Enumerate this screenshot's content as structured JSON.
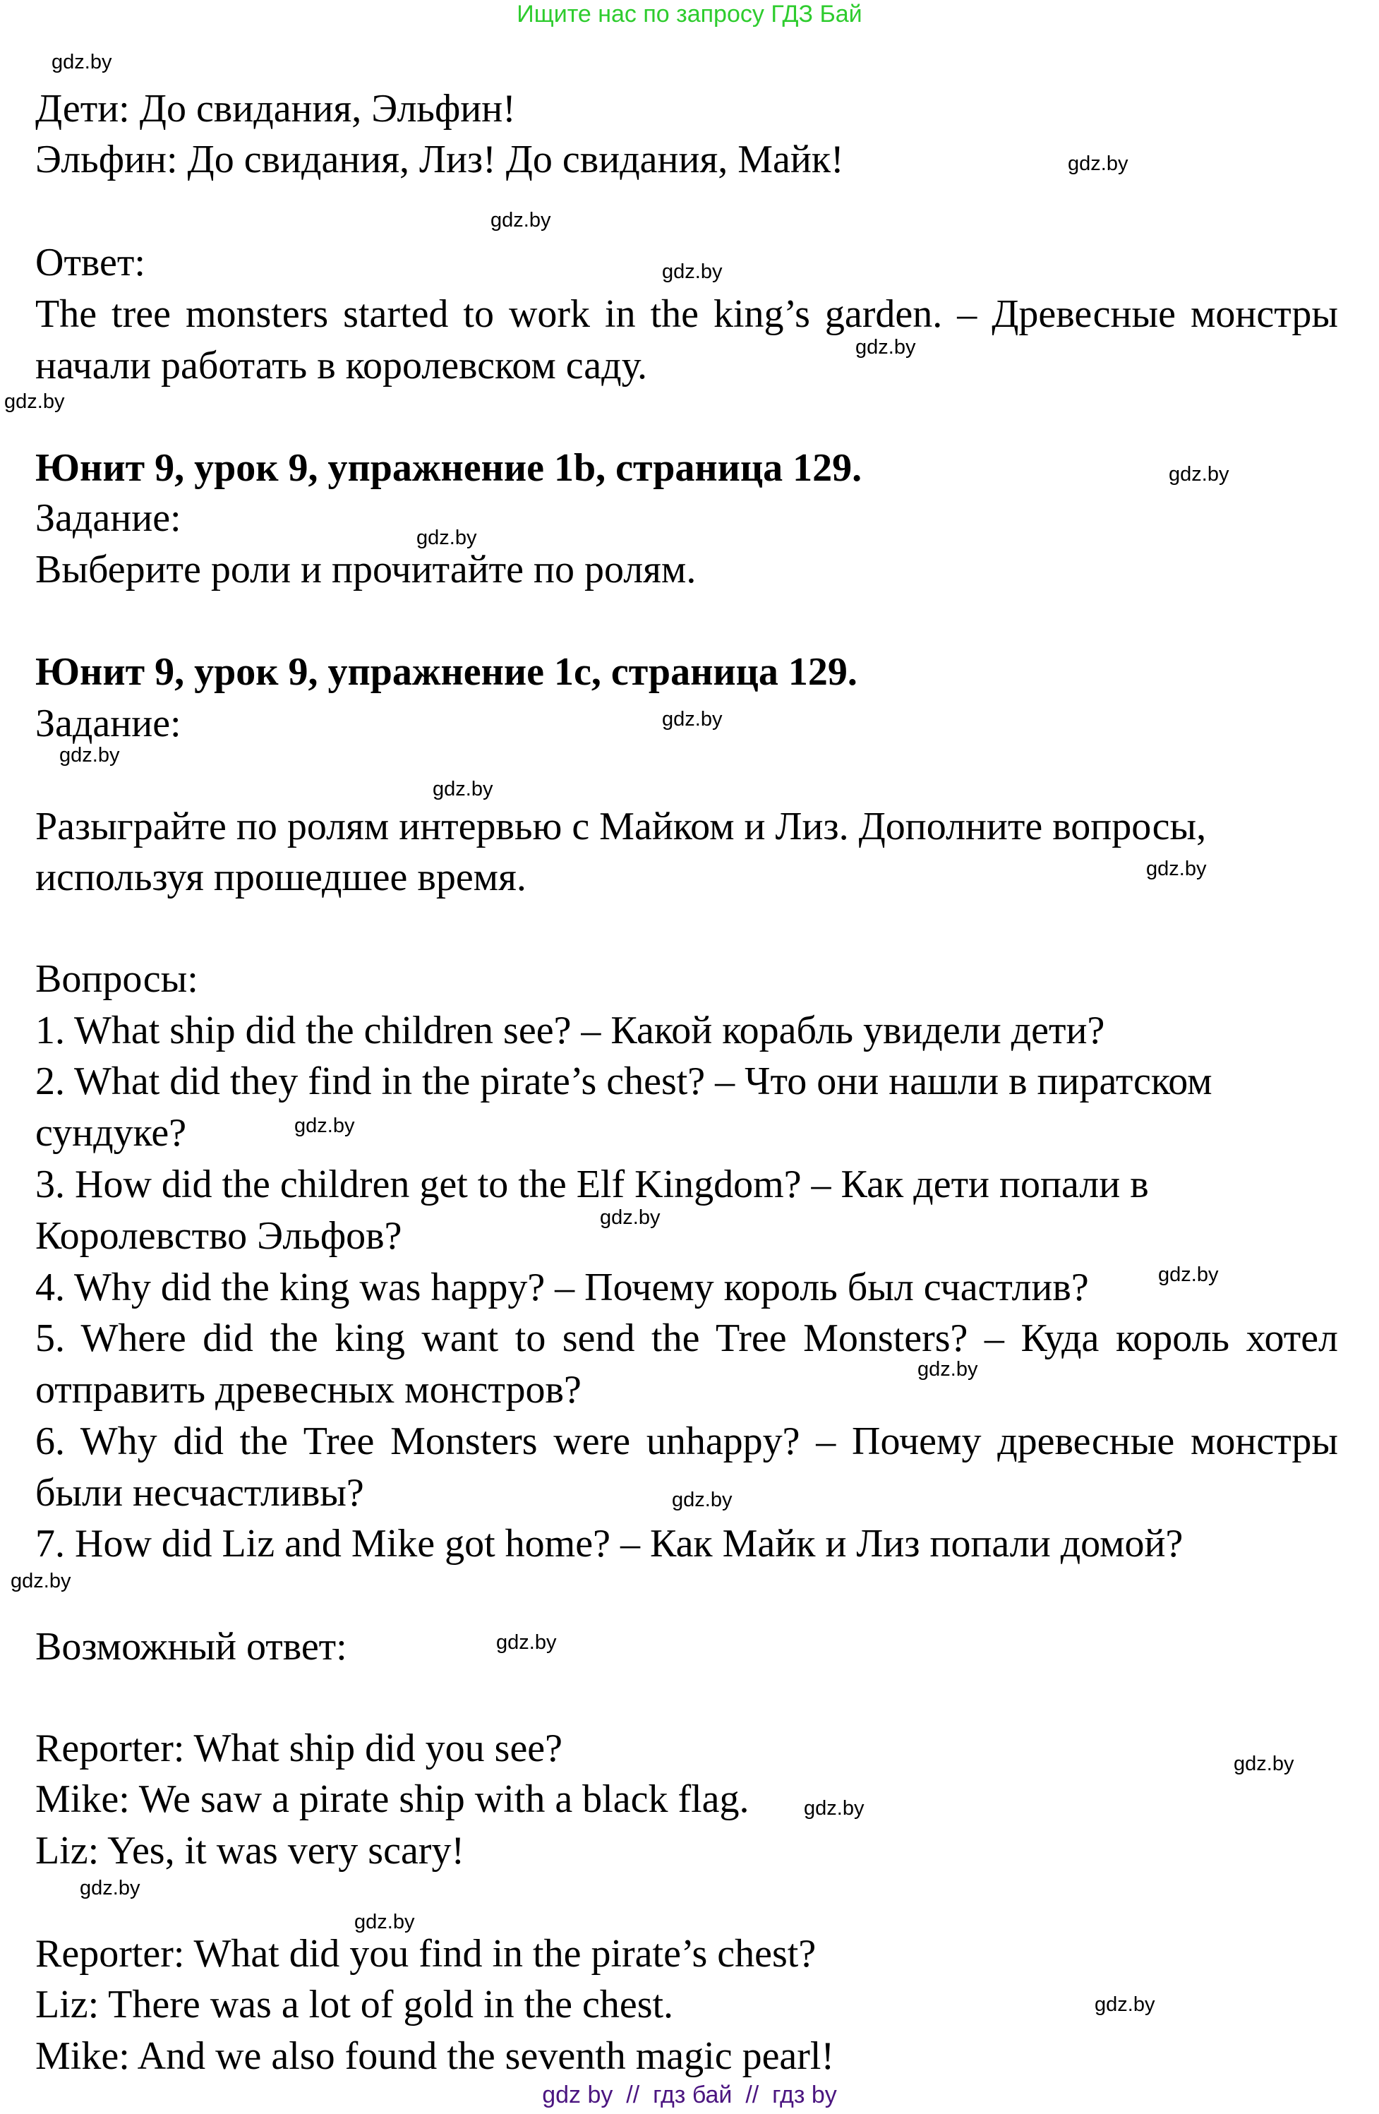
{
  "header": "Ищите нас по запросу ГДЗ Бай",
  "watermark": "gdz.by",
  "lines": {
    "l1": "Дети: До свидания, Эльфин!",
    "l2": "Эльфин: До свидания, Лиз! До свидания, Майк!",
    "l3": "Ответ:",
    "l4": "The tree monsters started to work in the king’s garden. – Древесные монстры",
    "l5": "начали работать в королевском саду.",
    "h1": "Юнит 9, урок 9, упражнение 1b, страница 129.",
    "l6": "Задание:",
    "l7": "Выберите роли и прочитайте по ролям.",
    "h2": "Юнит 9, урок 9, упражнение 1c, страница 129.",
    "l8": "Задание:",
    "l9": "Разыграйте по ролям интервью с Майком и Лиз. Дополните вопросы,",
    "l10": "используя прошедшее время.",
    "l11": "Вопросы:",
    "q1": "1. What ship did the children see? – Какой корабль увидели дети?",
    "q2a": "2. What did they find in the pirate’s chest? – Что они нашли в пиратском",
    "q2b": "сундуке?",
    "q3a": "3. How did the children get to the Elf Kingdom? – Как дети попали в",
    "q3b": "Королевство Эльфов?",
    "q4": "4. Why did the king was happy? – Почему король был счастлив?",
    "q5a": "5. Where did the king want to send the Tree Monsters? – Куда король хотел",
    "q5b": "отправить древесных монстров?",
    "q6a": "6. Why did the Tree Monsters were unhappy? – Почему древесные монстры",
    "q6b": "были несчастливы?",
    "q7": "7. How did Liz and Mike got home? – Как Майк и Лиз попали домой?",
    "l12": "Возможный ответ:",
    "a1": "Reporter: What ship did you see?",
    "a2": "Mike: We saw a pirate ship with a black flag.",
    "a3": "Liz: Yes, it was very scary!",
    "a4": "Reporter: What did you find in the pirate’s chest?",
    "a5": "Liz: There was a lot of gold in the chest.",
    "a6": "Mike: And we also found the seventh magic pearl!"
  },
  "footer": "gdz by  //  гдз бай  //  гдз by",
  "colors": {
    "header": "#2ecc2e",
    "footer": "#4b1580"
  }
}
